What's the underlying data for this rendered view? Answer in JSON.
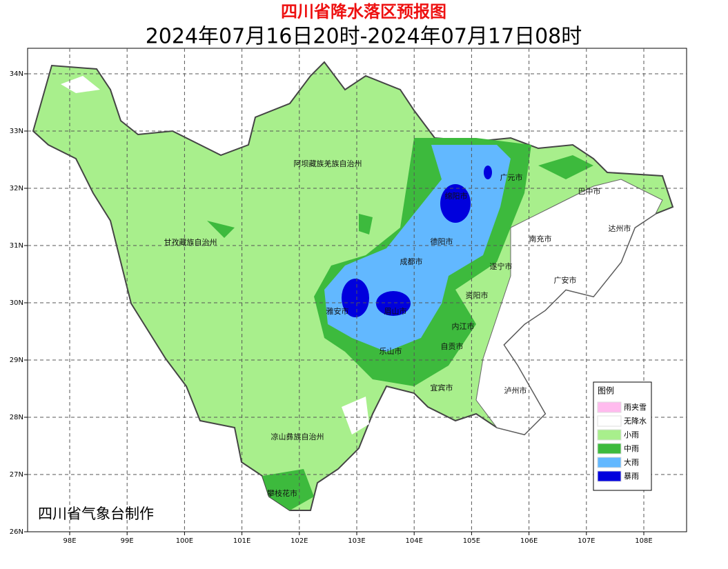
{
  "header": {
    "title": "四川省降水落区预报图",
    "subtitle": "2024年07月16日20时-2024年07月17日08时"
  },
  "map": {
    "lat_labels": [
      "34N",
      "33N",
      "32N",
      "31N",
      "30N",
      "29N",
      "28N",
      "27N",
      "26N"
    ],
    "lon_labels": [
      "98E",
      "99E",
      "100E",
      "101E",
      "102E",
      "103E",
      "104E",
      "105E",
      "106E",
      "107E",
      "108E"
    ],
    "regions": [
      "阿坝藏族羌族自治州",
      "甘孜藏族自治州",
      "凉山彝族自治州",
      "攀枝花市",
      "广元市",
      "巴中市",
      "绵阳市",
      "达州市",
      "南充市",
      "德阳市",
      "成都市",
      "遂宁市",
      "广安市",
      "资阳市",
      "雅安市",
      "眉山市",
      "内江市",
      "乐山市",
      "自贡市",
      "宜宾市",
      "泸州市"
    ]
  },
  "legend": {
    "title": "图例",
    "items": [
      {
        "name": "雨夹雪",
        "color": "#ffbbee"
      },
      {
        "name": "无降水",
        "color": "#ffffff"
      },
      {
        "name": "小雨",
        "color": "#a8ef8c"
      },
      {
        "name": "中雨",
        "color": "#3dba3d"
      },
      {
        "name": "大雨",
        "color": "#62b8ff"
      },
      {
        "name": "暴雨",
        "color": "#0000dd"
      }
    ]
  },
  "footer": "四川省气象台制作"
}
